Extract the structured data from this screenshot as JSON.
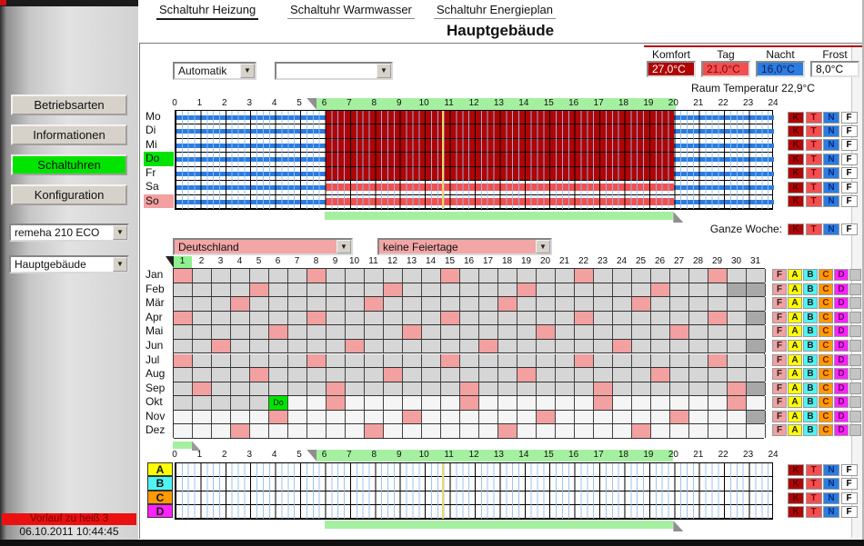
{
  "tabs": [
    {
      "label": "Schaltuhr Heizung",
      "active": true
    },
    {
      "label": "Schaltuhr Warmwasser",
      "active": false
    },
    {
      "label": "Schaltuhr Energieplan",
      "active": false
    }
  ],
  "page_title": "Hauptgebäude",
  "sidebar": {
    "buttons": [
      {
        "label": "Betriebsarten",
        "active": false
      },
      {
        "label": "Informationen",
        "active": false
      },
      {
        "label": "Schaltuhren",
        "active": true
      },
      {
        "label": "Konfiguration",
        "active": false
      }
    ],
    "device_select": {
      "value": "remeha 210 ECO"
    },
    "zone_select": {
      "value": "Hauptgebäude"
    },
    "status_message": "Vorlauf zu heiß 3",
    "datetime": "06.10.2011 10:44:45"
  },
  "controls": {
    "mode_select": {
      "value": "Automatik"
    },
    "program_select": {
      "value": ""
    }
  },
  "temperatures": {
    "columns": [
      {
        "label": "Komfort",
        "value": "27,0°C",
        "bg": "#b00505",
        "fg": "#ffffff"
      },
      {
        "label": "Tag",
        "value": "21,0°C",
        "bg": "#f25050",
        "fg": "#8b0000"
      },
      {
        "label": "Nacht",
        "value": "16,0°C",
        "bg": "#2b7ce0",
        "fg": "#101c5a"
      },
      {
        "label": "Frost",
        "value": "8,0°C",
        "bg": "#ffffff",
        "fg": "#000000"
      }
    ],
    "room_temperature_label": "Raum Temperatur 22,9°C"
  },
  "week_schedule": {
    "hour_ticks": [
      0,
      1,
      2,
      3,
      4,
      5,
      6,
      7,
      8,
      9,
      10,
      11,
      12,
      13,
      14,
      15,
      16,
      17,
      18,
      19,
      20,
      21,
      22,
      23,
      24
    ],
    "days": [
      {
        "label": "Mo",
        "day_period": "komfort",
        "today": false,
        "sunday": false
      },
      {
        "label": "Di",
        "day_period": "komfort",
        "today": false,
        "sunday": false
      },
      {
        "label": "Mi",
        "day_period": "komfort",
        "today": false,
        "sunday": false
      },
      {
        "label": "Do",
        "day_period": "komfort",
        "today": true,
        "sunday": false
      },
      {
        "label": "Fr",
        "day_period": "komfort",
        "today": false,
        "sunday": false
      },
      {
        "label": "Sa",
        "day_period": "tag",
        "today": false,
        "sunday": false
      },
      {
        "label": "So",
        "day_period": "tag",
        "today": false,
        "sunday": true
      }
    ],
    "night_periods": [
      [
        0,
        6
      ],
      [
        20,
        24
      ]
    ],
    "day_period_hours": [
      6,
      20
    ],
    "selection_band_hours": [
      5.7,
      20.1
    ],
    "selection_bar_hours": [
      6,
      20
    ],
    "current_time_hours": 10.73,
    "level_buttons": [
      {
        "label": "K",
        "bg": "#b00505",
        "fg": "#5a0000"
      },
      {
        "label": "T",
        "bg": "#f25050",
        "fg": "#8b0000"
      },
      {
        "label": "N",
        "bg": "#2b7ce0",
        "fg": "#0a2a7a"
      },
      {
        "label": "F",
        "bg": "#ffffff",
        "fg": "#000000"
      }
    ],
    "whole_week_label": "Ganze Woche:"
  },
  "holiday_calendar": {
    "country_select": {
      "value": "Deutschland"
    },
    "holiday_select": {
      "value": "keine Feiertage"
    },
    "days_per_row": 31,
    "highlighted_day_header": 1,
    "months": [
      {
        "label": "Jan",
        "pink_days": [
          1,
          8,
          15,
          22,
          29
        ],
        "invalid_days": [],
        "shade": "gray",
        "white_from": null,
        "today": null
      },
      {
        "label": "Feb",
        "pink_days": [
          5,
          12,
          19,
          26
        ],
        "invalid_days": [
          30,
          31
        ],
        "shade": "gray",
        "white_from": null,
        "today": null
      },
      {
        "label": "Mär",
        "pink_days": [
          4,
          11,
          18,
          25
        ],
        "invalid_days": [],
        "shade": "gray",
        "white_from": null,
        "today": null
      },
      {
        "label": "Apr",
        "pink_days": [
          1,
          8,
          15,
          22,
          29
        ],
        "invalid_days": [
          31
        ],
        "shade": "gray",
        "white_from": null,
        "today": null
      },
      {
        "label": "Mai",
        "pink_days": [
          6,
          13,
          20,
          27
        ],
        "invalid_days": [],
        "shade": "gray",
        "white_from": null,
        "today": null
      },
      {
        "label": "Jun",
        "pink_days": [
          3,
          10,
          17,
          24
        ],
        "invalid_days": [
          31
        ],
        "shade": "gray",
        "white_from": null,
        "today": null
      },
      {
        "label": "Jul",
        "pink_days": [
          1,
          8,
          15,
          22,
          29
        ],
        "invalid_days": [],
        "shade": "gray",
        "white_from": null,
        "today": null
      },
      {
        "label": "Aug",
        "pink_days": [
          5,
          12,
          19,
          26
        ],
        "invalid_days": [],
        "shade": "gray",
        "white_from": null,
        "today": null
      },
      {
        "label": "Sep",
        "pink_days": [
          2,
          9,
          16,
          23,
          30
        ],
        "invalid_days": [
          31
        ],
        "shade": "gray",
        "white_from": null,
        "today": null
      },
      {
        "label": "Okt",
        "pink_days": [
          9,
          16,
          23,
          30
        ],
        "invalid_days": [],
        "shade": "gray",
        "white_from": 7,
        "today": {
          "day": 6,
          "label": "Do"
        }
      },
      {
        "label": "Nov",
        "pink_days": [
          6,
          13,
          20,
          27
        ],
        "invalid_days": [
          31
        ],
        "shade": "white",
        "white_from": null,
        "today": null
      },
      {
        "label": "Dez",
        "pink_days": [
          4,
          11,
          18,
          25
        ],
        "invalid_days": [],
        "shade": "white",
        "white_from": null,
        "today": null
      }
    ],
    "category_buttons": [
      {
        "label": "F",
        "bg": "#f2a0a0",
        "fg": "#222222"
      },
      {
        "label": "A",
        "bg": "#ffff00",
        "fg": "#222222"
      },
      {
        "label": "B",
        "bg": "#4ef3f3",
        "fg": "#222222"
      },
      {
        "label": "C",
        "bg": "#ff9a00",
        "fg": "#7a1a00"
      },
      {
        "label": "D",
        "bg": "#ff22ff",
        "fg": "#6a006a"
      }
    ]
  },
  "abcd_schedule": {
    "rows": [
      {
        "label": "A",
        "bg": "#ffff00"
      },
      {
        "label": "B",
        "bg": "#4ef3f3"
      },
      {
        "label": "C",
        "bg": "#ff9a00"
      },
      {
        "label": "D",
        "bg": "#ff22ff"
      }
    ],
    "selection_band_hours": [
      5.7,
      20
    ],
    "selection_bar_hours": [
      6,
      20
    ],
    "start_bar_hours": [
      0,
      0.75
    ],
    "current_time_hours": 10.73,
    "level_buttons": [
      {
        "label": "K",
        "bg": "#b00505",
        "fg": "#5a0000"
      },
      {
        "label": "T",
        "bg": "#f25050",
        "fg": "#8b0000"
      },
      {
        "label": "N",
        "bg": "#2b7ce0",
        "fg": "#0a2a7a"
      },
      {
        "label": "F",
        "bg": "#ffffff",
        "fg": "#000000"
      }
    ]
  },
  "colors": {
    "comfort_red": "#b00505",
    "day_salmon": "#f25050",
    "night_blue": "#2b7ce0",
    "today_green": "#00e400",
    "sunday_pink": "#f2a0a0",
    "selection_green": "#a5f0a0",
    "current_time_line": "#e6da70",
    "cell_past_gray": "#d6d6d6",
    "cell_future_white": "#f5f5f5",
    "cell_invalid_gray": "#a8a8a8"
  }
}
